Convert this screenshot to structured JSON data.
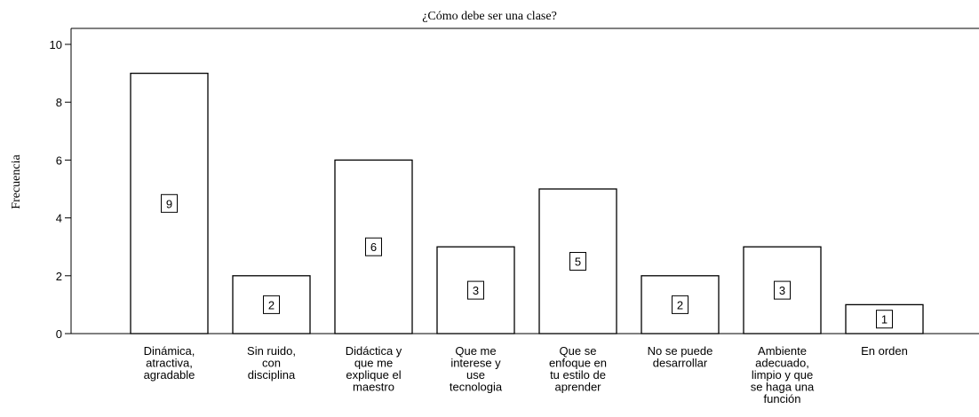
{
  "chart_data": {
    "type": "bar",
    "title": "¿Cómo debe ser una clase?",
    "y_label": "Frecuencia",
    "categories": [
      "Dinámica,\natractiva,\nagradable",
      "Sin ruido,\ncon\ndisciplina",
      "Didáctica y\nque me\nexplique el\nmaestro",
      "Que me\ninterese y\nuse\ntecnologia",
      "Que se\nenfoque en\ntu estilo de\naprender",
      "No se puede\ndesarrollar",
      "Ambiente\nadecuado,\nlimpio y que\nse haga una\nfunción",
      "En orden"
    ],
    "values": [
      9,
      2,
      6,
      3,
      5,
      2,
      3,
      1
    ],
    "color": "#ffffff",
    "ylim": [
      0,
      10
    ],
    "yticks": [
      0,
      2,
      4,
      6,
      8,
      10
    ],
    "grid": false
  }
}
